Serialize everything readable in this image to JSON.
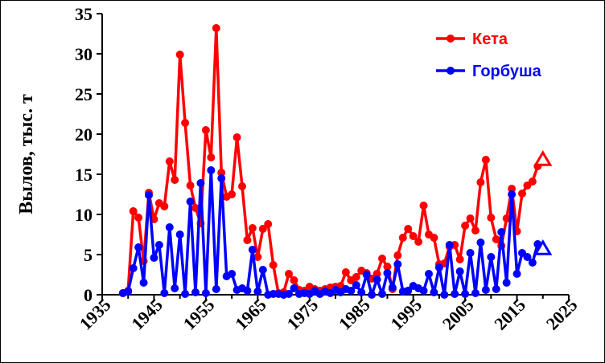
{
  "chart_data": {
    "type": "line",
    "title": "",
    "xlabel": "",
    "ylabel": "Вылов, тыс. т",
    "xlim": [
      1935,
      2025
    ],
    "ylim": [
      0,
      35
    ],
    "xticks": [
      "1935",
      "1945",
      "1955",
      "1965",
      "1975",
      "1985",
      "1995",
      "2005",
      "2015",
      "2025"
    ],
    "yticks": [
      "0",
      "5",
      "10",
      "15",
      "20",
      "25",
      "30",
      "35"
    ],
    "grid": false,
    "legend_position": "top-right",
    "series": [
      {
        "name": "Кета",
        "color": "#ff0000",
        "x": [
          1939,
          1940,
          1941,
          1942,
          1943,
          1944,
          1945,
          1946,
          1947,
          1948,
          1949,
          1950,
          1951,
          1952,
          1953,
          1954,
          1955,
          1956,
          1957,
          1958,
          1959,
          1960,
          1961,
          1962,
          1963,
          1964,
          1965,
          1966,
          1967,
          1968,
          1969,
          1970,
          1971,
          1972,
          1973,
          1974,
          1975,
          1976,
          1977,
          1978,
          1979,
          1980,
          1981,
          1982,
          1983,
          1984,
          1985,
          1986,
          1987,
          1988,
          1989,
          1990,
          1991,
          1992,
          1993,
          1994,
          1995,
          1996,
          1997,
          1998,
          1999,
          2000,
          2001,
          2002,
          2003,
          2004,
          2005,
          2006,
          2007,
          2008,
          2009,
          2010,
          2011,
          2012,
          2013,
          2014,
          2015,
          2016,
          2017,
          2018,
          2019,
          2020
        ],
        "y": [
          0.2,
          0.5,
          10.4,
          9.6,
          4.2,
          12.7,
          9.4,
          11.4,
          11.0,
          16.6,
          14.3,
          29.9,
          21.4,
          13.6,
          10.8,
          8.9,
          20.5,
          17.1,
          33.2,
          15.2,
          12.2,
          12.5,
          19.6,
          13.5,
          6.8,
          8.3,
          4.7,
          8.2,
          8.8,
          3.7,
          0.2,
          0.3,
          2.6,
          1.8,
          0.6,
          0.5,
          1.0,
          0.7,
          0.5,
          0.7,
          0.9,
          1.0,
          1.1,
          2.8,
          1.8,
          2.2,
          3.0,
          2.7,
          2.0,
          2.6,
          4.5,
          3.5,
          0.7,
          4.9,
          7.1,
          8.2,
          7.3,
          6.6,
          11.1,
          7.5,
          7.1,
          3.8,
          3.9,
          6.0,
          6.2,
          4.4,
          8.6,
          9.5,
          8.0,
          14.0,
          16.8,
          9.6,
          6.9,
          6.1,
          9.5,
          13.2,
          7.9,
          12.6,
          13.6,
          14.1,
          16.0,
          16.8
        ]
      },
      {
        "name": "Горбуша",
        "color": "#0000ff",
        "x": [
          1939,
          1940,
          1941,
          1942,
          1943,
          1944,
          1945,
          1946,
          1947,
          1948,
          1949,
          1950,
          1951,
          1952,
          1953,
          1954,
          1955,
          1956,
          1957,
          1958,
          1959,
          1960,
          1961,
          1962,
          1963,
          1964,
          1965,
          1966,
          1967,
          1968,
          1969,
          1970,
          1971,
          1972,
          1973,
          1974,
          1975,
          1976,
          1977,
          1978,
          1979,
          1980,
          1981,
          1982,
          1983,
          1984,
          1985,
          1986,
          1987,
          1988,
          1989,
          1990,
          1991,
          1992,
          1993,
          1994,
          1995,
          1996,
          1997,
          1998,
          1999,
          2000,
          2001,
          2002,
          2003,
          2004,
          2005,
          2006,
          2007,
          2008,
          2009,
          2010,
          2011,
          2012,
          2013,
          2014,
          2015,
          2016,
          2017,
          2018,
          2019,
          2020
        ],
        "y": [
          0.2,
          0.4,
          3.3,
          5.9,
          1.5,
          12.4,
          4.6,
          6.2,
          0.2,
          8.4,
          0.8,
          7.5,
          0.1,
          11.6,
          0.3,
          13.9,
          0.2,
          15.5,
          0.7,
          14.5,
          2.3,
          2.6,
          0.6,
          0.8,
          0.5,
          5.6,
          0.4,
          3.1,
          0.0,
          0.1,
          0.1,
          0.0,
          0.1,
          0.8,
          0.1,
          0.2,
          0.1,
          0.5,
          0.1,
          0.4,
          0.2,
          0.6,
          0.3,
          0.7,
          0.5,
          1.2,
          0.3,
          2.5,
          0.0,
          1.9,
          0.1,
          2.7,
          0.9,
          3.8,
          0.4,
          0.5,
          1.1,
          0.8,
          0.5,
          2.6,
          0.3,
          3.4,
          0.0,
          6.2,
          0.1,
          2.9,
          0.1,
          5.2,
          0.2,
          6.5,
          0.6,
          4.7,
          0.7,
          7.8,
          1.5,
          12.5,
          2.6,
          5.2,
          4.7,
          4.0,
          6.3,
          5.7
        ]
      }
    ],
    "markers": [
      {
        "series": "Кета",
        "x": 2020,
        "y": 16.8,
        "shape": "triangle-open"
      },
      {
        "series": "Горбуша",
        "x": 2020,
        "y": 5.7,
        "shape": "triangle-open"
      }
    ]
  }
}
